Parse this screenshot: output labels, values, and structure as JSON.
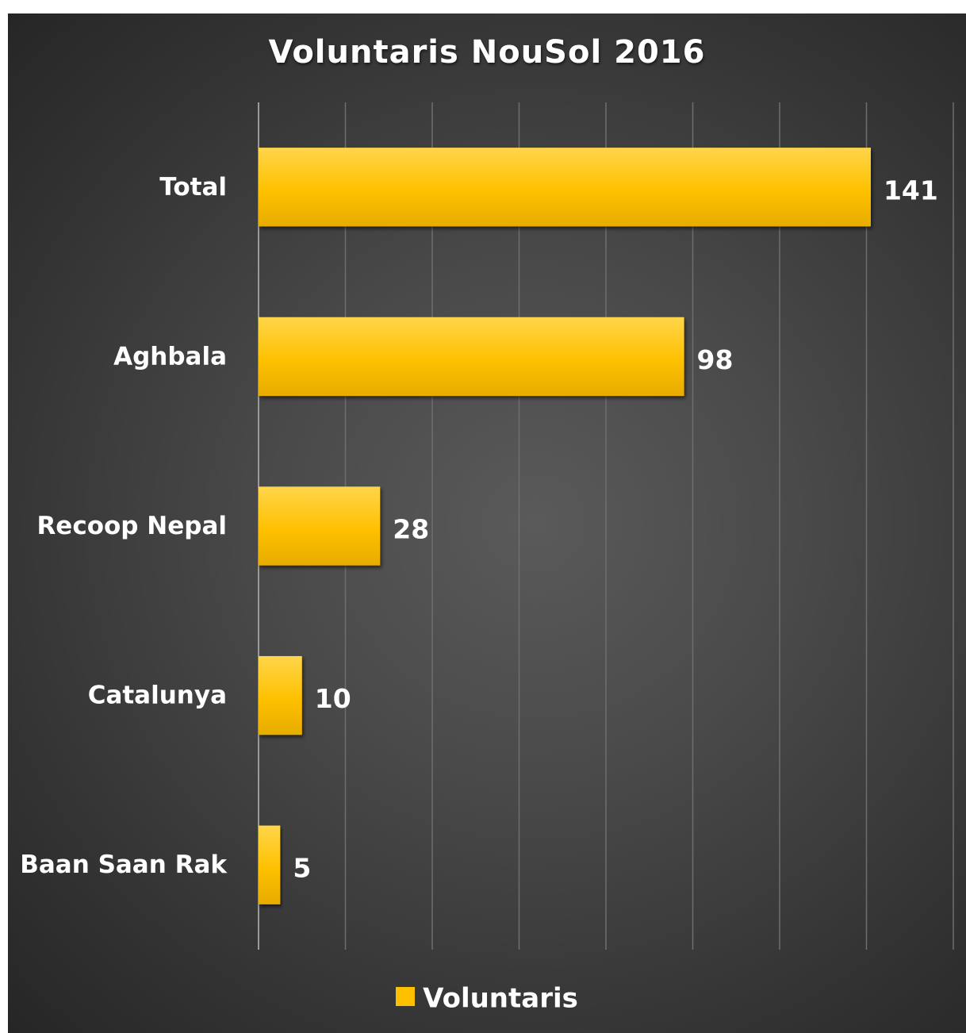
{
  "chart_data": {
    "type": "bar",
    "orientation": "horizontal",
    "title": "Voluntaris NouSol 2016",
    "categories": [
      "Total",
      "Aghbala",
      "Recoop Nepal",
      "Catalunya",
      "Baan Saan Rak"
    ],
    "series": [
      {
        "name": "Voluntaris",
        "values": [
          141,
          98,
          28,
          10,
          5
        ],
        "color": "#ffc000"
      }
    ],
    "data_labels": [
      "141",
      "98",
      "28",
      "10",
      "5"
    ],
    "xlim": [
      0,
      160
    ],
    "grid": true,
    "legend_position": "bottom"
  },
  "colors": {
    "bar": "#ffc000",
    "bar_light": "#ffd54a",
    "bar_dark": "#e6ac00",
    "text": "#ffffff",
    "gridline": "#6e6e6e",
    "axis": "#9a9a9a"
  }
}
